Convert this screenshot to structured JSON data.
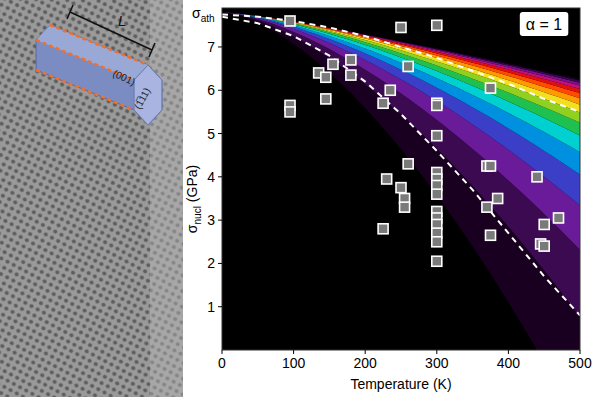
{
  "chart_data": {
    "type": "scatter",
    "x_label": "Temperature (K)",
    "y_label": "σnucl (GPa)",
    "annotations": [
      "σath",
      "α = 1"
    ],
    "xlim": [
      0,
      500
    ],
    "ylim": [
      0,
      7.9
    ],
    "xticks": [
      0,
      100,
      200,
      300,
      400,
      500
    ],
    "yticks": [
      1,
      2,
      3,
      4,
      5,
      6,
      7
    ],
    "grid": false,
    "series": [
      {
        "type": "line",
        "line_style": "dashed",
        "color": "#ffffff",
        "x": [
          0,
          50,
          100,
          150,
          200,
          250,
          300,
          350,
          400,
          450,
          500
        ],
        "values": [
          7.75,
          7.7,
          7.6,
          7.45,
          7.25,
          7.0,
          6.75,
          6.45,
          6.15,
          5.8,
          5.5
        ]
      },
      {
        "type": "line",
        "line_style": "dashed",
        "color": "#ffffff",
        "x": [
          0,
          50,
          100,
          150,
          200,
          250,
          300,
          350,
          400,
          450,
          500
        ],
        "values": [
          7.7,
          7.55,
          7.25,
          6.8,
          6.2,
          5.45,
          4.6,
          3.7,
          2.7,
          1.7,
          0.8
        ]
      },
      {
        "type": "scatter",
        "marker": "square",
        "color": "#ffffff",
        "x": [
          95,
          95,
          95,
          135,
          145,
          145,
          155,
          180,
          180,
          225,
          225,
          230,
          235,
          250,
          250,
          255,
          255,
          260,
          260,
          300,
          300,
          300,
          300,
          300,
          300,
          300,
          300,
          300,
          300,
          300,
          300,
          300,
          300,
          370,
          370,
          375,
          375,
          375,
          385,
          440,
          445,
          450,
          450,
          470
        ],
        "values": [
          7.6,
          5.65,
          5.5,
          6.4,
          6.3,
          5.8,
          6.6,
          6.7,
          6.35,
          5.7,
          2.8,
          3.95,
          6.0,
          7.45,
          3.75,
          3.5,
          3.3,
          6.55,
          4.3,
          7.5,
          5.7,
          5.65,
          4.95,
          4.1,
          3.95,
          3.8,
          3.6,
          3.2,
          3.05,
          2.9,
          2.7,
          2.5,
          2.05,
          4.25,
          3.3,
          4.25,
          6.05,
          2.65,
          3.5,
          4.0,
          2.45,
          2.4,
          2.9,
          3.05
        ]
      }
    ]
  },
  "image_panel": {
    "labels": [
      "L",
      "(001)",
      "(1̅11)"
    ]
  }
}
